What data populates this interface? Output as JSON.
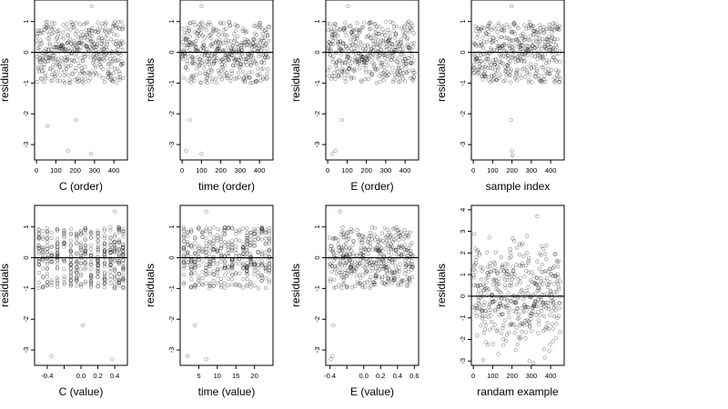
{
  "chart_data": [
    {
      "type": "scatter",
      "xlabel": "C (order)",
      "ylabel": "residuals",
      "xlim": [
        -10,
        470
      ],
      "ylim": [
        -3.5,
        1.7
      ],
      "xticks": [
        0,
        100,
        200,
        300,
        400
      ],
      "xtick_labels": [
        "0",
        "100",
        "200",
        "300",
        "400"
      ],
      "yticks": [
        -3,
        -2,
        -1,
        0,
        1
      ],
      "ytick_labels": [
        "-3",
        "-2",
        "-1",
        "0",
        "1"
      ],
      "hline": 0,
      "n_points": 450,
      "x_kind": "index",
      "y_kind": "residual",
      "outliers": [
        {
          "x": 58,
          "y": -2.4
        },
        {
          "x": 162,
          "y": -3.2
        },
        {
          "x": 205,
          "y": -2.2
        },
        {
          "x": 282,
          "y": -3.3
        },
        {
          "x": 285,
          "y": 1.5
        }
      ]
    },
    {
      "type": "scatter",
      "xlabel": "time (order)",
      "ylabel": "residuals",
      "xlim": [
        -10,
        470
      ],
      "ylim": [
        -3.5,
        1.7
      ],
      "xticks": [
        0,
        100,
        200,
        300,
        400
      ],
      "xtick_labels": [
        "0",
        "100",
        "200",
        "300",
        "400"
      ],
      "yticks": [
        -3,
        -2,
        -1,
        0,
        1
      ],
      "ytick_labels": [
        "-3",
        "-2",
        "-1",
        "0",
        "1"
      ],
      "hline": 0,
      "n_points": 450,
      "x_kind": "index",
      "y_kind": "residual",
      "outliers": [
        {
          "x": 20,
          "y": -3.2
        },
        {
          "x": 40,
          "y": -2.2
        },
        {
          "x": 100,
          "y": -3.3
        },
        {
          "x": 100,
          "y": 1.5
        }
      ]
    },
    {
      "type": "scatter",
      "xlabel": "E (order)",
      "ylabel": "residuals",
      "xlim": [
        -10,
        470
      ],
      "ylim": [
        -3.5,
        1.7
      ],
      "xticks": [
        0,
        100,
        200,
        300,
        400
      ],
      "xtick_labels": [
        "0",
        "100",
        "200",
        "300",
        "400"
      ],
      "yticks": [
        -3,
        -2,
        -1,
        0,
        1
      ],
      "ytick_labels": [
        "-3",
        "-2",
        "-1",
        "0",
        "1"
      ],
      "hline": 0,
      "n_points": 450,
      "x_kind": "index",
      "y_kind": "residual",
      "outliers": [
        {
          "x": 25,
          "y": -3.3
        },
        {
          "x": 40,
          "y": -3.2
        },
        {
          "x": 75,
          "y": -2.2
        },
        {
          "x": 105,
          "y": 1.5
        }
      ]
    },
    {
      "type": "scatter",
      "xlabel": "sample index",
      "ylabel": "residuals",
      "xlim": [
        -10,
        470
      ],
      "ylim": [
        -3.5,
        1.7
      ],
      "xticks": [
        0,
        100,
        200,
        300,
        400
      ],
      "xtick_labels": [
        "0",
        "100",
        "200",
        "300",
        "400"
      ],
      "yticks": [
        -3,
        -2,
        -1,
        0,
        1
      ],
      "ytick_labels": [
        "-3",
        "-2",
        "-1",
        "0",
        "1"
      ],
      "hline": 0,
      "n_points": 450,
      "x_kind": "index",
      "y_kind": "residual",
      "outliers": [
        {
          "x": 195,
          "y": -2.2
        },
        {
          "x": 200,
          "y": -3.2
        },
        {
          "x": 202,
          "y": -3.35
        },
        {
          "x": 198,
          "y": 1.5
        }
      ]
    },
    {
      "type": "scatter",
      "xlabel": "C (value)",
      "ylabel": "residuals",
      "xlim": [
        -0.55,
        0.55
      ],
      "ylim": [
        -3.5,
        1.7
      ],
      "xticks": [
        -0.4,
        -0.2,
        0.0,
        0.2,
        0.4
      ],
      "xtick_labels": [
        "-0.4",
        "",
        "0.0",
        "0.2",
        "0.4"
      ],
      "yticks": [
        -3,
        -2,
        -1,
        0,
        1
      ],
      "ytick_labels": [
        "-3",
        "-2",
        "-1",
        "0",
        "1"
      ],
      "hline": 0,
      "n_points": 450,
      "x_kind": "discrete",
      "x_levels": [
        -0.5,
        -0.45,
        -0.4,
        -0.35,
        -0.28,
        -0.2,
        -0.12,
        -0.05,
        0.0,
        0.05,
        0.12,
        0.2,
        0.28,
        0.35,
        0.4,
        0.45,
        0.5
      ],
      "y_kind": "residual",
      "outliers": [
        {
          "x": -0.35,
          "y": -3.2
        },
        {
          "x": 0.02,
          "y": -2.2
        },
        {
          "x": 0.37,
          "y": -3.3
        },
        {
          "x": 0.4,
          "y": 1.5
        }
      ]
    },
    {
      "type": "scatter",
      "xlabel": "time (value)",
      "ylabel": "residuals",
      "xlim": [
        0,
        25
      ],
      "ylim": [
        -3.5,
        1.7
      ],
      "xticks": [
        5,
        10,
        15,
        20
      ],
      "xtick_labels": [
        "5",
        "10",
        "15",
        "20"
      ],
      "yticks": [
        -3,
        -2,
        -1,
        0,
        1
      ],
      "ytick_labels": [
        "-3",
        "-2",
        "-1",
        "0",
        "1"
      ],
      "hline": 0,
      "n_points": 450,
      "x_kind": "discrete",
      "x_levels": [
        1,
        2,
        3,
        4,
        5,
        6,
        7,
        8,
        9,
        10,
        11,
        12,
        13,
        14,
        15,
        16,
        17,
        18,
        19,
        20,
        21,
        22,
        23,
        24
      ],
      "y_kind": "residual",
      "outliers": [
        {
          "x": 2,
          "y": -3.2
        },
        {
          "x": 4,
          "y": -2.2
        },
        {
          "x": 7,
          "y": -3.3
        },
        {
          "x": 7,
          "y": 1.5
        }
      ]
    },
    {
      "type": "scatter",
      "xlabel": "E (value)",
      "ylabel": "residuals",
      "xlim": [
        -0.45,
        0.65
      ],
      "ylim": [
        -3.5,
        1.7
      ],
      "xticks": [
        -0.4,
        -0.2,
        0.0,
        0.2,
        0.4,
        0.6
      ],
      "xtick_labels": [
        "-0.4",
        "",
        "0.0",
        "0.2",
        "0.4",
        "0.6"
      ],
      "yticks": [
        -3,
        -2,
        -1,
        0,
        1
      ],
      "ytick_labels": [
        "-3",
        "-2",
        "-1",
        "0",
        "1"
      ],
      "hline": 0,
      "n_points": 450,
      "x_kind": "uniform",
      "y_kind": "residual",
      "outliers": [
        {
          "x": -0.39,
          "y": -3.3
        },
        {
          "x": -0.37,
          "y": -3.2
        },
        {
          "x": -0.36,
          "y": -2.2
        },
        {
          "x": -0.28,
          "y": 1.5
        }
      ]
    },
    {
      "type": "scatter",
      "xlabel": "randam example",
      "ylabel": "residuals",
      "xlim": [
        -10,
        470
      ],
      "ylim": [
        -3.2,
        4.2
      ],
      "xticks": [
        0,
        100,
        200,
        300,
        400
      ],
      "xtick_labels": [
        "0",
        "100",
        "200",
        "300",
        "400"
      ],
      "yticks": [
        -3,
        -2,
        -1,
        0,
        1,
        2,
        3,
        4
      ],
      "ytick_labels": [
        "-3",
        "-2",
        "-1",
        "0",
        "1",
        "2",
        "3",
        "4"
      ],
      "hline": 0,
      "n_points": 450,
      "x_kind": "index",
      "y_kind": "normal",
      "outliers": [
        {
          "x": 330,
          "y": 3.7
        },
        {
          "x": 290,
          "y": -3.0
        }
      ]
    }
  ]
}
